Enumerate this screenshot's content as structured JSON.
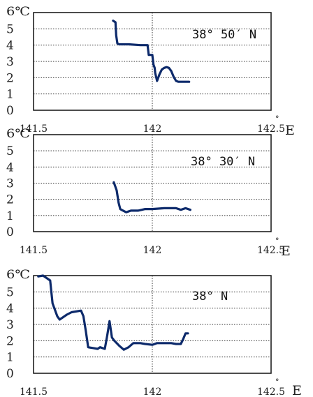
{
  "chart_data": [
    {
      "type": "line",
      "annotation": "38° 50′ N",
      "ylabel": "6℃",
      "xlabel": "E",
      "x_unit_mark": "°",
      "xlim": [
        141.5,
        142.5
      ],
      "ylim": [
        0,
        6
      ],
      "x_ticks": [
        "141.5",
        "142",
        "142.5"
      ],
      "y_ticks": [
        "0",
        "1",
        "2",
        "3",
        "4",
        "5"
      ],
      "grid": true,
      "series": [
        {
          "color": "#0d2a6b",
          "x": [
            141.835,
            141.845,
            141.848,
            141.853,
            141.86,
            141.9,
            141.95,
            141.975,
            141.98,
            141.985,
            142.0,
            142.005,
            142.01,
            142.012,
            142.02,
            142.03,
            142.04,
            142.05,
            142.06,
            142.07,
            142.08,
            142.09,
            142.1,
            142.11,
            142.13,
            142.155
          ],
          "y": [
            5.5,
            5.4,
            4.6,
            4.1,
            4.05,
            4.05,
            4.0,
            4.0,
            4.0,
            3.4,
            3.4,
            2.8,
            2.6,
            2.3,
            1.8,
            2.2,
            2.5,
            2.6,
            2.65,
            2.6,
            2.4,
            2.05,
            1.8,
            1.75,
            1.75,
            1.75
          ]
        }
      ]
    },
    {
      "type": "line",
      "annotation": "38° 30′ N",
      "ylabel": "6℃",
      "xlabel": "E",
      "x_unit_mark": "°",
      "xlim": [
        141.5,
        142.5
      ],
      "ylim": [
        0,
        6
      ],
      "x_ticks": [
        "141.5",
        "142",
        "142.5"
      ],
      "y_ticks": [
        "0",
        "1",
        "2",
        "3",
        "4",
        "5"
      ],
      "grid": true,
      "series": [
        {
          "color": "#0d2a6b",
          "x": [
            141.838,
            141.85,
            141.858,
            141.865,
            141.87,
            141.89,
            141.91,
            141.94,
            141.97,
            142.0,
            142.05,
            142.1,
            142.12,
            142.14,
            142.16
          ],
          "y": [
            3.05,
            2.55,
            1.8,
            1.4,
            1.35,
            1.2,
            1.3,
            1.3,
            1.4,
            1.4,
            1.45,
            1.45,
            1.35,
            1.45,
            1.35
          ]
        }
      ]
    },
    {
      "type": "line",
      "annotation": "38° N",
      "ylabel": "6℃",
      "xlabel": "E",
      "x_unit_mark": "°",
      "xlim": [
        141.5,
        142.5
      ],
      "ylim": [
        0,
        6
      ],
      "x_ticks": [
        "141.5",
        "142",
        "142.5"
      ],
      "y_ticks": [
        "0",
        "1",
        "2",
        "3",
        "4",
        "5"
      ],
      "grid": true,
      "series": [
        {
          "color": "#0d2a6b",
          "x": [
            141.52,
            141.54,
            141.55,
            141.57,
            141.58,
            141.6,
            141.61,
            141.62,
            141.64,
            141.66,
            141.7,
            141.71,
            141.72,
            141.73,
            141.75,
            141.77,
            141.78,
            141.8,
            141.81,
            141.82,
            141.83,
            141.84,
            141.86,
            141.88,
            141.9,
            141.92,
            141.95,
            141.97,
            142.0,
            142.02,
            142.05,
            142.08,
            142.1,
            142.12,
            142.13,
            142.14,
            142.15
          ],
          "y": [
            5.95,
            6.0,
            5.9,
            5.7,
            4.3,
            3.5,
            3.3,
            3.4,
            3.6,
            3.75,
            3.85,
            3.5,
            2.6,
            1.6,
            1.55,
            1.5,
            1.6,
            1.5,
            2.3,
            3.2,
            2.2,
            2.0,
            1.7,
            1.45,
            1.6,
            1.85,
            1.85,
            1.8,
            1.75,
            1.85,
            1.85,
            1.85,
            1.8,
            1.8,
            2.1,
            2.45,
            2.45
          ]
        }
      ]
    }
  ]
}
